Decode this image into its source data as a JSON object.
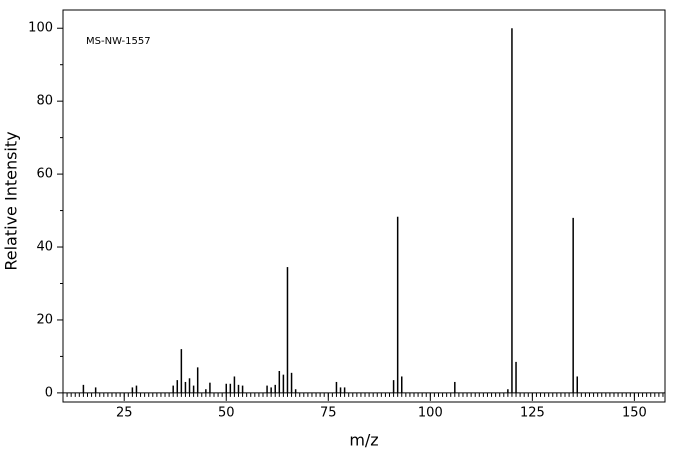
{
  "chart_data": {
    "type": "bar",
    "title": "MS-NW-1557",
    "x_label": "m/z",
    "y_label": "Relative Intensity",
    "x": [
      15,
      18,
      27,
      28,
      37,
      38,
      39,
      40,
      41,
      42,
      43,
      45,
      46,
      50,
      51,
      52,
      53,
      54,
      60,
      61,
      62,
      63,
      64,
      65,
      66,
      67,
      77,
      78,
      79,
      91,
      92,
      93,
      106,
      119,
      120,
      121,
      135,
      136
    ],
    "values": [
      2.2,
      1.5,
      1.5,
      2,
      2,
      3.5,
      12,
      3,
      4,
      2,
      7,
      1,
      2.8,
      2.5,
      2.5,
      4.5,
      2.2,
      2,
      2,
      1.5,
      2.2,
      6,
      5,
      34.5,
      5.5,
      1,
      3,
      1.5,
      1.5,
      3.5,
      48.3,
      4.5,
      3,
      1,
      100,
      8.5,
      48,
      4.5
    ],
    "color": "#000000",
    "xlim": [
      10,
      157.5
    ],
    "xticks": [
      25,
      50,
      75,
      100,
      125,
      150
    ],
    "ylim": [
      -2.5,
      105
    ],
    "yticks": [
      0,
      20,
      40,
      60,
      80,
      100
    ]
  }
}
